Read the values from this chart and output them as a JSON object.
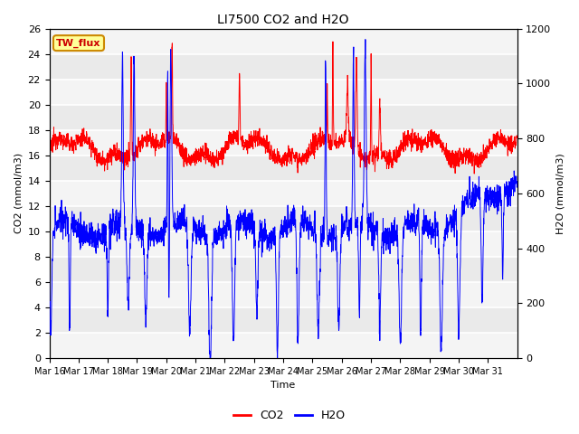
{
  "title": "LI7500 CO2 and H2O",
  "xlabel": "Time",
  "ylabel_left": "CO2 (mmol/m3)",
  "ylabel_right": "H2O (mmol/m3)",
  "annotation": "TW_flux",
  "co2_ylim": [
    0,
    26
  ],
  "h2o_ylim": [
    0,
    1200
  ],
  "co2_yticks": [
    0,
    2,
    4,
    6,
    8,
    10,
    12,
    14,
    16,
    18,
    20,
    22,
    24,
    26
  ],
  "h2o_yticks": [
    0,
    200,
    400,
    600,
    800,
    1000,
    1200
  ],
  "x_tick_labels": [
    "Mar 16",
    "Mar 17",
    "Mar 18",
    "Mar 19",
    "Mar 20",
    "Mar 21",
    "Mar 22",
    "Mar 23",
    "Mar 24",
    "Mar 25",
    "Mar 26",
    "Mar 27",
    "Mar 28",
    "Mar 29",
    "Mar 30",
    "Mar 31"
  ],
  "co2_color": "#ff0000",
  "h2o_color": "#0000ff",
  "grid_color": "#d8d8d8",
  "background_color": "#eaeaea",
  "annotation_bg": "#ffff99",
  "annotation_border": "#cc8800",
  "fig_width": 6.4,
  "fig_height": 4.8,
  "dpi": 100
}
